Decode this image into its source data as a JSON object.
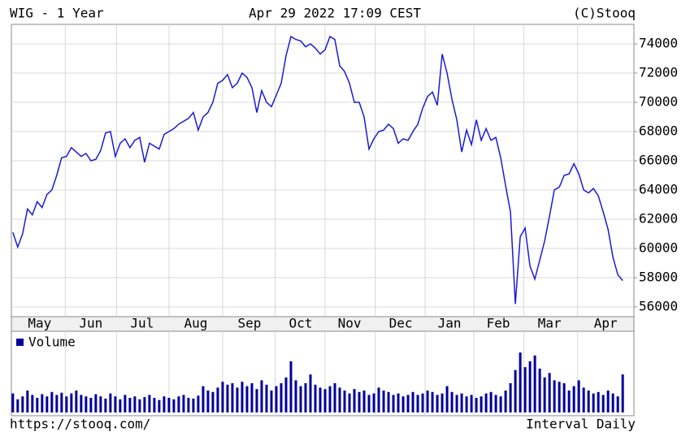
{
  "chart_data": [
    {
      "type": "line",
      "title": "WIG - 1 Year",
      "subtitle": "Apr 29 2022 17:09 CEST",
      "source": "(C)Stooq",
      "color": "#1a1ad6",
      "values": [
        61100,
        60100,
        61000,
        62700,
        62300,
        63200,
        62800,
        63700,
        64000,
        65000,
        66200,
        66300,
        66900,
        66600,
        66300,
        66500,
        66000,
        66100,
        66700,
        67900,
        68000,
        66300,
        67200,
        67500,
        66900,
        67400,
        67600,
        65900,
        67200,
        67000,
        66800,
        67800,
        68000,
        68200,
        68500,
        68700,
        68900,
        69300,
        68100,
        69000,
        69300,
        70000,
        71300,
        71500,
        71900,
        71000,
        71300,
        72000,
        71700,
        71000,
        69300,
        70800,
        70000,
        69700,
        70500,
        71300,
        73200,
        74500,
        74300,
        74200,
        73800,
        74000,
        73700,
        73300,
        73600,
        74500,
        74300,
        72500,
        72100,
        71300,
        70000,
        70000,
        69000,
        66800,
        67500,
        68000,
        68100,
        68500,
        68200,
        67200,
        67500,
        67400,
        68000,
        68500,
        69600,
        70400,
        70700,
        69800,
        73300,
        72000,
        70200,
        68800,
        66600,
        68100,
        67100,
        68800,
        67400,
        68200,
        67400,
        67600,
        66200,
        64300,
        62500,
        56200,
        60800,
        61400,
        58800,
        57900,
        59200,
        60500,
        62200,
        64000,
        64200,
        65000,
        65100,
        65800,
        65100,
        64000,
        63800,
        64100,
        63600,
        62500,
        61300,
        59400,
        58200,
        57800
      ],
      "xlim": [
        -0.3,
        127.3
      ],
      "ylim": [
        55333,
        75333
      ],
      "yticks": [
        56000,
        58000,
        60000,
        62000,
        64000,
        66000,
        68000,
        70000,
        72000,
        74000
      ],
      "xticks": [
        {
          "value": 5.5,
          "label": "May"
        },
        {
          "value": 16,
          "label": "Jun"
        },
        {
          "value": 26.5,
          "label": "Jul"
        },
        {
          "value": 37.5,
          "label": "Aug"
        },
        {
          "value": 48.5,
          "label": "Sep"
        },
        {
          "value": 59,
          "label": "Oct"
        },
        {
          "value": 69,
          "label": "Nov"
        },
        {
          "value": 79.5,
          "label": "Dec"
        },
        {
          "value": 89.5,
          "label": "Jan"
        },
        {
          "value": 99.5,
          "label": "Feb"
        },
        {
          "value": 110,
          "label": "Mar"
        },
        {
          "value": 121.5,
          "label": "Apr"
        }
      ],
      "grid": true
    },
    {
      "type": "bar",
      "name": "Volume",
      "color": "#00009a",
      "values": [
        26,
        18,
        22,
        30,
        24,
        20,
        25,
        22,
        28,
        24,
        27,
        22,
        26,
        30,
        24,
        22,
        20,
        25,
        22,
        19,
        26,
        22,
        18,
        24,
        20,
        22,
        18,
        21,
        24,
        20,
        17,
        22,
        20,
        18,
        22,
        24,
        20,
        19,
        23,
        36,
        30,
        28,
        34,
        42,
        38,
        40,
        34,
        42,
        36,
        40,
        32,
        44,
        38,
        30,
        36,
        40,
        48,
        70,
        44,
        36,
        40,
        52,
        38,
        34,
        32,
        36,
        40,
        34,
        30,
        26,
        32,
        28,
        30,
        24,
        26,
        34,
        30,
        28,
        24,
        26,
        22,
        24,
        28,
        24,
        26,
        30,
        28,
        24,
        26,
        36,
        28,
        24,
        26,
        22,
        24,
        20,
        22,
        26,
        28,
        24,
        22,
        30,
        40,
        58,
        82,
        62,
        70,
        78,
        60,
        48,
        54,
        44,
        42,
        40,
        30,
        36,
        44,
        34,
        30,
        26,
        28,
        24,
        30,
        26,
        22,
        52
      ],
      "xlim": [
        -0.3,
        127.3
      ],
      "ylim": [
        0,
        100
      ]
    }
  ],
  "footer": {
    "url": "https://stooq.com/",
    "interval": "Interval Daily"
  }
}
